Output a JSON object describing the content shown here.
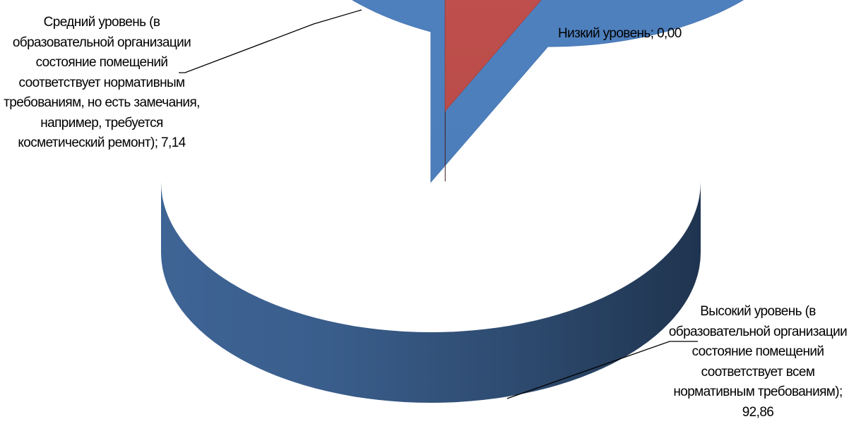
{
  "chart_data": {
    "type": "pie",
    "style": "3d-exploded",
    "title": "",
    "slices": [
      {
        "name": "Высокий уровень (в образовательной организации состояние помещений соответствует всем нормативным требованиям)",
        "value": 92.86,
        "color": "#4F81BD",
        "label": "Высокий уровень (в образовательной организации состояние помещений соответствует всем нормативным требованиям); 92,86"
      },
      {
        "name": "Средний уровень (в образовательной организации состояние помещений соответствует нормативным требованиям, но есть замечания, например, требуется косметический ремонт)",
        "value": 7.14,
        "color": "#C0504D",
        "label": "Средний уровень (в образовательной организации состояние помещений соответствует нормативным требованиям, но есть замечания, например, требуется косметический ремонт); 7,14"
      },
      {
        "name": "Низкий уровень",
        "value": 0.0,
        "color": "#9BBB59",
        "label": "Низкий уровень; 0,00"
      }
    ],
    "legend": "none",
    "data_labels": "outside-with-leader-lines"
  }
}
